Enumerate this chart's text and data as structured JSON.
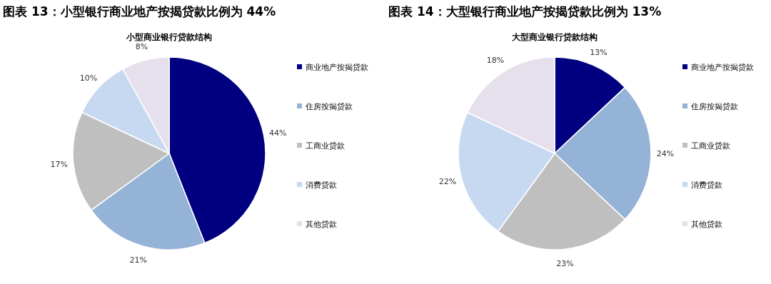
{
  "chart_data": [
    {
      "type": "pie",
      "title": "图表 13：小型银行商业地产按揭贷款比例为 44%",
      "subtitle": "小型商业银行贷款结构",
      "categories": [
        "商业地产按揭贷款",
        "住房按揭贷款",
        "工商业贷款",
        "消费贷款",
        "其他贷款"
      ],
      "values": [
        44,
        21,
        17,
        10,
        8
      ],
      "value_labels": [
        "44%",
        "21%",
        "17%",
        "10%",
        "8%"
      ],
      "colors": [
        "#000080",
        "#95b3d7",
        "#bfbfbf",
        "#c6d9f0",
        "#e6e0ec"
      ],
      "legend": "right"
    },
    {
      "type": "pie",
      "title": "图表 14：大型银行商业地产按揭贷款比例为 13%",
      "subtitle": "大型商业银行贷款结构",
      "categories": [
        "商业地产按揭贷款",
        "住房按揭贷款",
        "工商业贷款",
        "消费贷款",
        "其他贷款"
      ],
      "values": [
        13,
        24,
        23,
        22,
        18
      ],
      "value_labels": [
        "13%",
        "24%",
        "23%",
        "22%",
        "18%"
      ],
      "colors": [
        "#000080",
        "#95b3d7",
        "#bfbfbf",
        "#c6d9f0",
        "#e6e0ec"
      ],
      "legend": "right"
    }
  ]
}
